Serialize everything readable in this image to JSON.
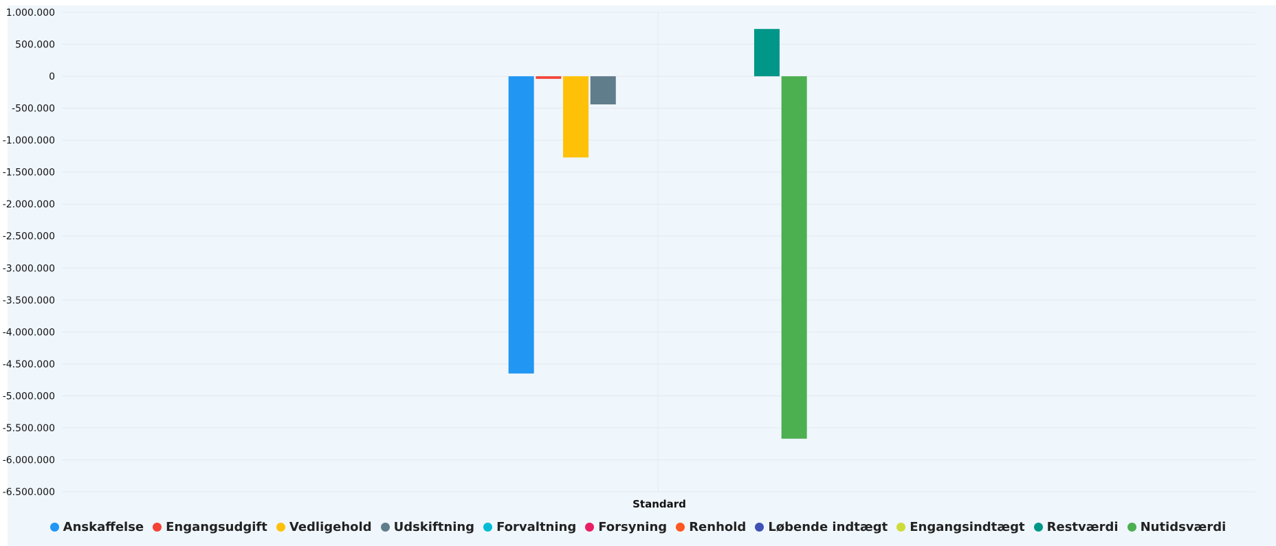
{
  "chart_data": {
    "type": "bar",
    "categories": [
      "Standard"
    ],
    "ylim": [
      -6500000,
      1000000
    ],
    "yticks": [
      1000000,
      500000,
      0,
      -500000,
      -1000000,
      -1500000,
      -2000000,
      -2500000,
      -3000000,
      -3500000,
      -4000000,
      -4500000,
      -5000000,
      -5500000,
      -6000000,
      -6500000
    ],
    "ytick_labels": [
      "1.000.000",
      "500.000",
      "0",
      "-500.000",
      "-1.000.000",
      "-1.500.000",
      "-2.000.000",
      "-2.500.000",
      "-3.000.000",
      "-3.500.000",
      "-4.000.000",
      "-4.500.000",
      "-5.000.000",
      "-5.500.000",
      "-6.000.000",
      "-6.500.000"
    ],
    "series": [
      {
        "name": "Anskaffelse",
        "color": "#2196f3",
        "values": [
          -4650000
        ]
      },
      {
        "name": "Engangsudgift",
        "color": "#f44336",
        "values": [
          -40000
        ]
      },
      {
        "name": "Vedligehold",
        "color": "#ffc107",
        "values": [
          -1270000
        ]
      },
      {
        "name": "Udskiftning",
        "color": "#607d8b",
        "values": [
          -440000
        ]
      },
      {
        "name": "Forvaltning",
        "color": "#00bcd4",
        "values": [
          0
        ]
      },
      {
        "name": "Forsyning",
        "color": "#e91e63",
        "values": [
          0
        ]
      },
      {
        "name": "Renhold",
        "color": "#ff5722",
        "values": [
          0
        ]
      },
      {
        "name": "Løbende indtægt",
        "color": "#3f51b5",
        "values": [
          0
        ]
      },
      {
        "name": "Engangsindtægt",
        "color": "#cddc39",
        "values": [
          0
        ]
      },
      {
        "name": "Restværdi",
        "color": "#009688",
        "values": [
          740000
        ]
      },
      {
        "name": "Nutidsværdi",
        "color": "#4caf50",
        "values": [
          -5670000
        ]
      }
    ],
    "grid": true,
    "legend_position": "bottom"
  }
}
